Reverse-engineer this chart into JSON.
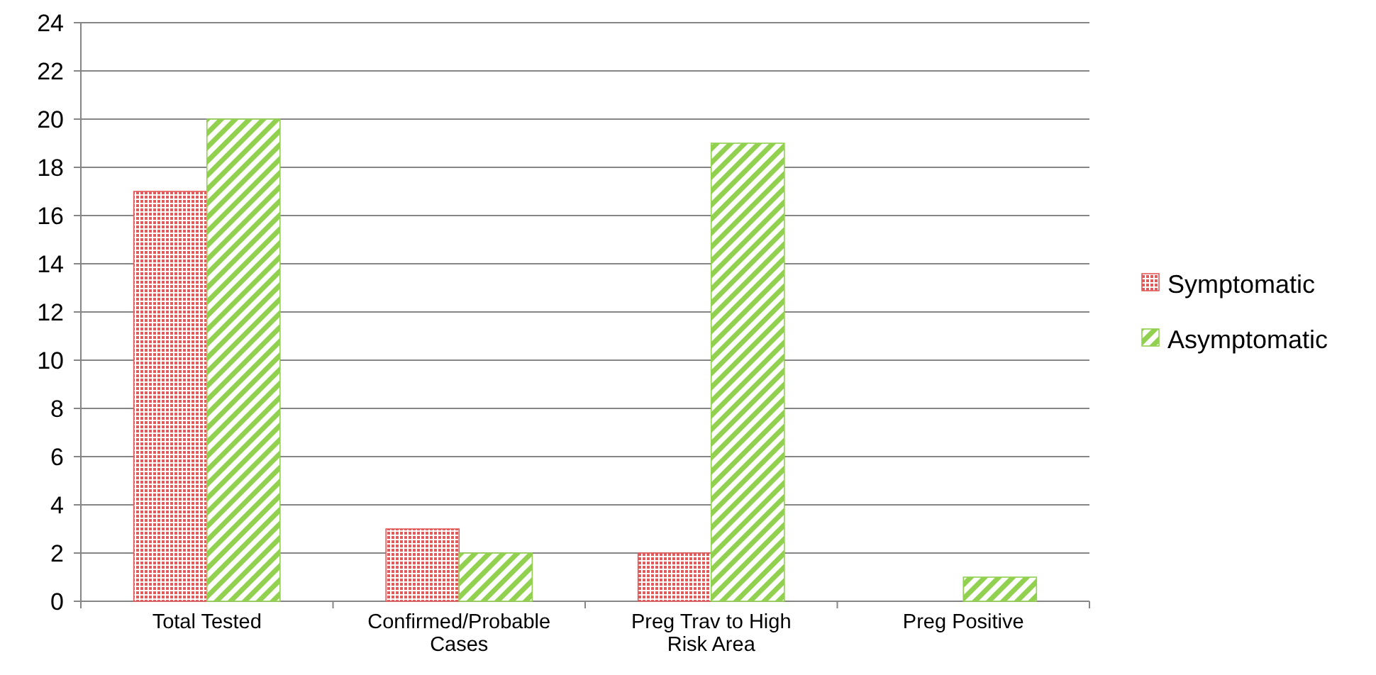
{
  "chart_data": {
    "type": "bar",
    "categories": [
      "Total Tested",
      "Confirmed/Probable Cases",
      "Preg Trav to High Risk Area",
      "Preg Positive"
    ],
    "series": [
      {
        "name": "Symptomatic",
        "color": "#e05c5c",
        "values": [
          17,
          3,
          2,
          0
        ]
      },
      {
        "name": "Asymptomatic",
        "color": "#92d050",
        "values": [
          20,
          2,
          19,
          1
        ]
      }
    ],
    "ylim": [
      0,
      24
    ],
    "yticks": [
      0,
      2,
      4,
      6,
      8,
      10,
      12,
      14,
      16,
      18,
      20,
      22,
      24
    ],
    "grid": "y",
    "legend": "right"
  }
}
